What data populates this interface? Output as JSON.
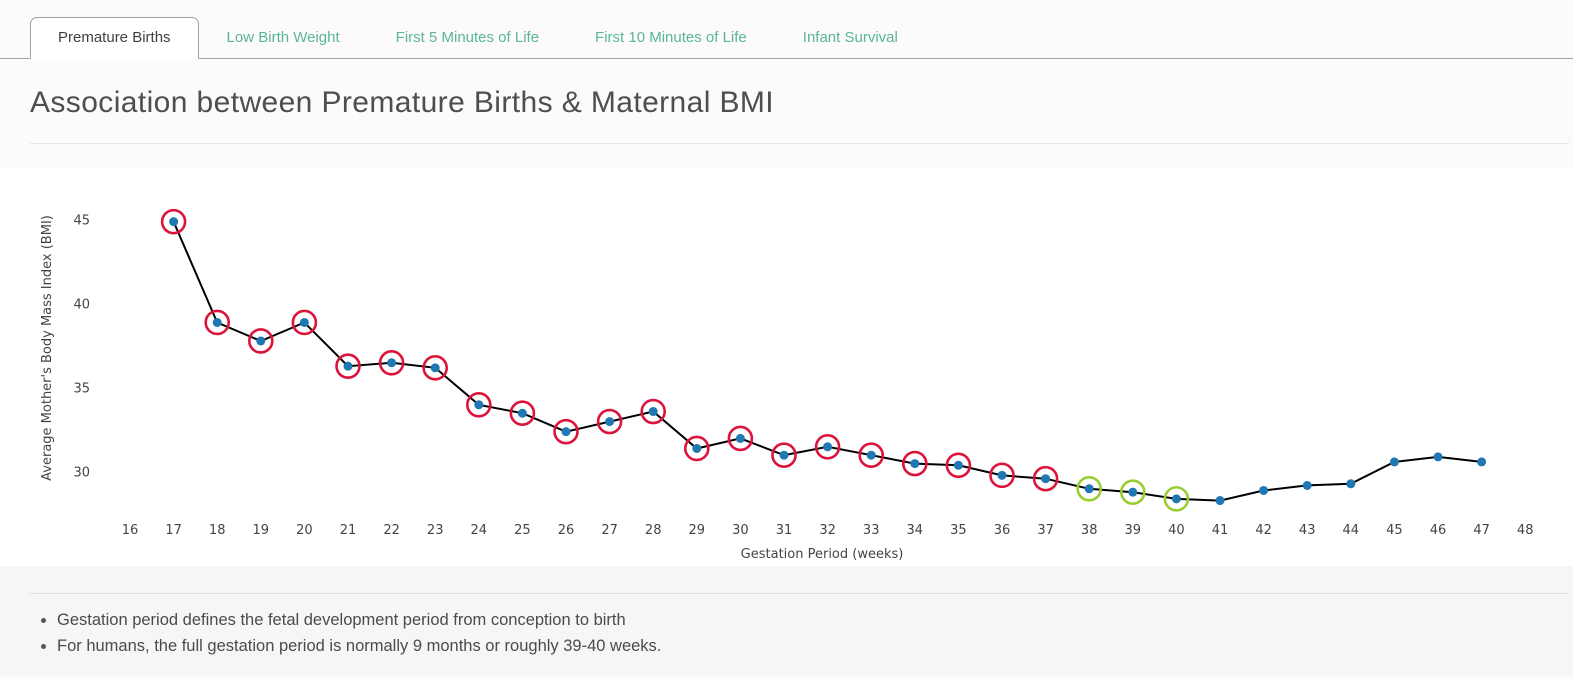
{
  "tabs": [
    {
      "label": "Premature Births",
      "active": true
    },
    {
      "label": "Low Birth Weight",
      "active": false
    },
    {
      "label": "First 5 Minutes of Life",
      "active": false
    },
    {
      "label": "First 10 Minutes of Life",
      "active": false
    },
    {
      "label": "Infant Survival",
      "active": false
    }
  ],
  "page_title": "Association between Premature Births & Maternal BMI",
  "chart_data": {
    "type": "line",
    "title": "",
    "xlabel": "Gestation Period (weeks)",
    "ylabel": "Average Mother's Body Mass Index (BMI)",
    "x": [
      17,
      18,
      19,
      20,
      21,
      22,
      23,
      24,
      25,
      26,
      27,
      28,
      29,
      30,
      31,
      32,
      33,
      34,
      35,
      36,
      37,
      38,
      39,
      40,
      41,
      42,
      43,
      44,
      45,
      46,
      47
    ],
    "y": [
      44.9,
      38.9,
      37.8,
      38.9,
      36.3,
      36.5,
      36.2,
      34.0,
      33.5,
      32.4,
      33.0,
      33.6,
      31.4,
      32.0,
      31.0,
      31.5,
      31.0,
      30.5,
      30.4,
      29.8,
      29.6,
      29.0,
      28.8,
      28.4,
      28.3,
      28.9,
      29.2,
      29.3,
      30.6,
      30.9,
      30.6
    ],
    "x_ticks": [
      16,
      17,
      18,
      19,
      20,
      21,
      22,
      23,
      24,
      25,
      26,
      27,
      28,
      29,
      30,
      31,
      32,
      33,
      34,
      35,
      36,
      37,
      38,
      39,
      40,
      41,
      42,
      43,
      44,
      45,
      46,
      47,
      48
    ],
    "y_ticks": [
      30,
      35,
      40,
      45
    ],
    "xlim": [
      16,
      48
    ],
    "ylim": [
      27.5,
      45.5
    ],
    "grid": false,
    "legend": "none",
    "line_color": "#000000",
    "point_color": "#1f77b4",
    "highlights": [
      {
        "name": "premature-weeks",
        "color": "#dc143c",
        "weeks": [
          17,
          18,
          19,
          20,
          21,
          22,
          23,
          24,
          25,
          26,
          27,
          28,
          29,
          30,
          31,
          32,
          33,
          34,
          35,
          36,
          37
        ]
      },
      {
        "name": "full-term-weeks",
        "color": "#9acd32",
        "weeks": [
          38,
          39,
          40
        ]
      }
    ]
  },
  "notes": [
    "Gestation period defines the fetal development period from conception to birth",
    "For humans, the full gestation period is normally 9 months or roughly 39-40 weeks."
  ],
  "colors": {
    "tab_accent": "#58b795",
    "tab_border": "#a3a1a1",
    "page_bg": "#fcfafa"
  }
}
